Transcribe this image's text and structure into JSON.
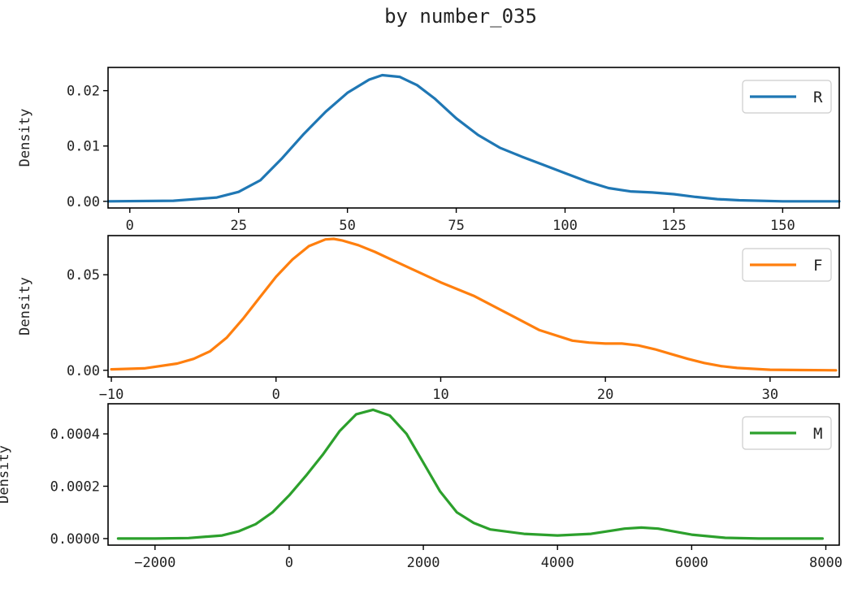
{
  "title": "by number_035",
  "chart_data": [
    {
      "type": "line",
      "ylabel": "Density",
      "xlim": [
        -5,
        163
      ],
      "ylim": [
        -0.0012,
        0.0242
      ],
      "xticks": [
        0,
        25,
        50,
        75,
        100,
        125,
        150
      ],
      "xtick_labels": [
        "0",
        "25",
        "50",
        "75",
        "100",
        "125",
        "150"
      ],
      "yticks": [
        0.0,
        0.01,
        0.02
      ],
      "ytick_labels": [
        "0.00",
        "0.01",
        "0.02"
      ],
      "legend_position": "top-right",
      "series": [
        {
          "name": "R",
          "color": "#1f77b4",
          "x": [
            -5,
            10,
            20,
            25,
            30,
            35,
            40,
            45,
            50,
            55,
            58,
            62,
            66,
            70,
            75,
            80,
            85,
            90,
            95,
            100,
            105,
            110,
            115,
            120,
            125,
            130,
            135,
            140,
            150,
            163
          ],
          "y": [
            0.0,
            0.0001,
            0.0007,
            0.0017,
            0.0038,
            0.0078,
            0.0122,
            0.0162,
            0.0196,
            0.022,
            0.0228,
            0.0225,
            0.021,
            0.0186,
            0.015,
            0.012,
            0.0097,
            0.0081,
            0.0066,
            0.0051,
            0.0036,
            0.0024,
            0.0018,
            0.0016,
            0.0013,
            0.0008,
            0.0004,
            0.0002,
            0.0,
            0.0
          ]
        }
      ]
    },
    {
      "type": "line",
      "ylabel": "Density",
      "xlim": [
        -10.2,
        34.2
      ],
      "ylim": [
        -0.0035,
        0.0705
      ],
      "xticks": [
        -10,
        0,
        10,
        20,
        30
      ],
      "xtick_labels": [
        "−10",
        "0",
        "10",
        "20",
        "30"
      ],
      "yticks": [
        0.0,
        0.05
      ],
      "ytick_labels": [
        "0.00",
        "0.05"
      ],
      "legend_position": "top-right",
      "series": [
        {
          "name": "F",
          "color": "#ff7f0e",
          "x": [
            -10,
            -8,
            -6,
            -5,
            -4,
            -3,
            -2,
            -1,
            0,
            1,
            2,
            3,
            3.5,
            4,
            5,
            6,
            7,
            8,
            10,
            12,
            14,
            16,
            18,
            19,
            20,
            21,
            22,
            23,
            24,
            25,
            26,
            27,
            28,
            30,
            32,
            34
          ],
          "y": [
            0.0005,
            0.001,
            0.0035,
            0.006,
            0.01,
            0.017,
            0.027,
            0.038,
            0.049,
            0.058,
            0.065,
            0.0685,
            0.0688,
            0.068,
            0.0655,
            0.062,
            0.058,
            0.054,
            0.046,
            0.039,
            0.03,
            0.021,
            0.0155,
            0.0145,
            0.014,
            0.014,
            0.013,
            0.011,
            0.0085,
            0.006,
            0.0038,
            0.0022,
            0.0012,
            0.0003,
            0.0001,
            0.0
          ]
        }
      ]
    },
    {
      "type": "line",
      "ylabel": "Density",
      "xlim": [
        -2700,
        8200
      ],
      "ylim": [
        -2.5e-05,
        0.000515
      ],
      "xticks": [
        -2000,
        0,
        2000,
        4000,
        6000,
        8000
      ],
      "xtick_labels": [
        "−2000",
        "0",
        "2000",
        "4000",
        "6000",
        "8000"
      ],
      "yticks": [
        0.0,
        0.0002,
        0.0004
      ],
      "ytick_labels": [
        "0.0000",
        "0.0002",
        "0.0004"
      ],
      "legend_position": "top-right",
      "series": [
        {
          "name": "M",
          "color": "#2ca02c",
          "x": [
            -2550,
            -2000,
            -1500,
            -1000,
            -750,
            -500,
            -250,
            0,
            250,
            500,
            750,
            1000,
            1250,
            1500,
            1750,
            2000,
            2250,
            2500,
            2750,
            3000,
            3500,
            4000,
            4500,
            5000,
            5250,
            5500,
            6000,
            6500,
            7000,
            7500,
            7950
          ],
          "y": [
            0.0,
            0.0,
            2e-06,
            1.2e-05,
            2.8e-05,
            5.5e-05,
            0.0001,
            0.000165,
            0.00024,
            0.00032,
            0.00041,
            0.000475,
            0.000492,
            0.00047,
            0.0004,
            0.00029,
            0.00018,
            0.0001,
            6e-05,
            3.5e-05,
            1.8e-05,
            1.2e-05,
            1.8e-05,
            3.8e-05,
            4.2e-05,
            3.8e-05,
            1.5e-05,
            3e-06,
            0.0,
            0.0,
            0.0
          ]
        }
      ]
    }
  ]
}
